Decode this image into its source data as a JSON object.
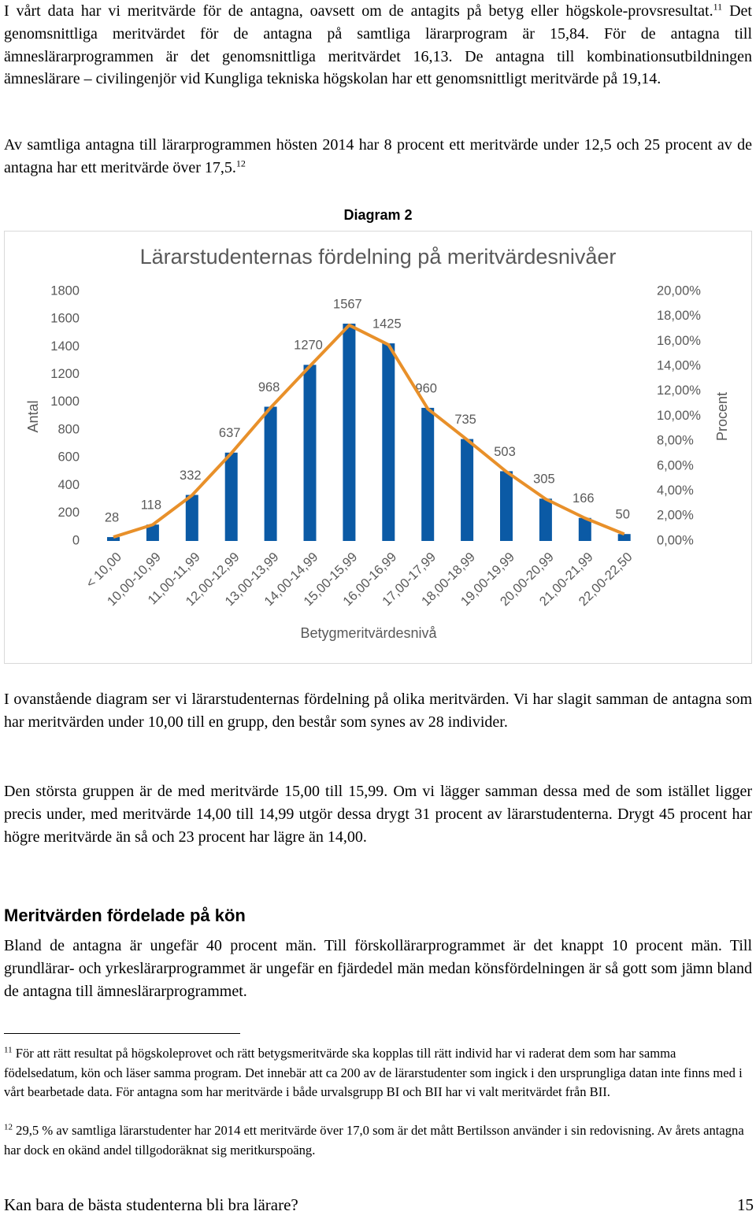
{
  "paragraphs": [
    {
      "before": "I vårt data har vi meritvärde för de antagna, oavsett om de antagits på betyg eller högskole-provsresultat.",
      "sup": "11",
      "after": " Det genomsnittliga meritvärdet för de antagna på samtliga lärarprogram är 15,84. För de antagna till ämneslärarprogrammen är det genomsnittliga meritvärdet 16,13. De antagna till kombinationsutbildningen ämneslärare – civilingenjör vid Kungliga tekniska högskolan har ett genomsnittligt meritvärde på 19,14."
    },
    {
      "before": "Av samtliga antagna till lärarprogrammen hösten 2014 har 8 procent ett meritvärde under 12,5 och 25 procent av de antagna har ett meritvärde över 17,5.",
      "sup": "12"
    },
    {
      "before": "I ovanstående diagram ser vi lärarstudenternas fördelning på olika meritvärden. Vi har slagit samman de antagna som har meritvärden under 10,00 till en grupp, den består som synes av 28 individer."
    },
    {
      "before": "Den största gruppen är de med meritvärde 15,00 till 15,99. Om vi lägger samman dessa med de som istället ligger precis under, med meritvärde 14,00 till 14,99 utgör dessa drygt 31 procent av lärarstudenterna. Drygt 45 procent har högre meritvärde än så och 23 procent har lägre än 14,00."
    },
    {
      "before": "Bland de antagna är ungefär 40 procent män. Till förskollärarprogrammet är det knappt 10 procent män. Till grundlärar- och yrkeslärarprogrammet är ungefär en fjärdedel män medan könsfördelningen är så gott som jämn bland de antagna till ämneslärarprogrammet."
    }
  ],
  "diagram_label": "Diagram 2",
  "heading": "Meritvärden fördelade på kön",
  "footnotes": [
    {
      "number": "11",
      "text": "För att rätt resultat på högskoleprovet och rätt betygsmeritvärde ska kopplas till rätt individ har vi raderat dem som har samma födelsedatum, kön och läser samma program. Det innebär att ca 200 av de lärarstudenter som ingick i den ursprungliga datan inte finns med i vårt bearbetade data. För antagna som har meritvärde i både urvalsgrupp BI och BII har vi valt meritvärdet från BII."
    },
    {
      "number": "12",
      "text": "29,5 % av samtliga lärarstudenter har 2014 ett meritvärde över 17,0 som är det mått Bertilsson använder i sin redovisning. Av årets antagna har dock en okänd andel tillgodoräknat sig meritkurspoäng."
    }
  ],
  "footer": {
    "title": "Kan bara de bästa studenterna bli bra lärare?",
    "page": "15"
  },
  "chart_data": {
    "type": "bar",
    "title": "Lärarstudenternas fördelning på meritvärdesnivåer",
    "x_label": "Betygmeritvärdesnivå",
    "y_label": "Antal",
    "y2_label": "Procent",
    "categories": [
      "< 10,00",
      "10,00-10,99",
      "11,00-11,99",
      "12,00-12,99",
      "13,00-13,99",
      "14,00-14,99",
      "15,00-15,99",
      "16,00-16,99",
      "17,00-17,99",
      "18,00-18,99",
      "19,00-19,99",
      "20,00-20,99",
      "21,00-21,99",
      "22,00-22,50"
    ],
    "series": [
      {
        "type": "bar",
        "color": "#0b5aa5",
        "values": [
          28,
          118,
          332,
          637,
          968,
          1270,
          1567,
          1425,
          960,
          735,
          503,
          305,
          166,
          50
        ]
      },
      {
        "type": "line",
        "axis": "y2",
        "color": "#e8902a",
        "values": [
          0.31,
          1.3,
          3.66,
          7.03,
          10.68,
          14.01,
          17.29,
          15.72,
          10.59,
          8.11,
          5.55,
          3.36,
          1.83,
          0.55
        ]
      }
    ],
    "ylim": [
      0,
      1800
    ],
    "yticks": [
      0,
      200,
      400,
      600,
      800,
      1000,
      1200,
      1400,
      1600,
      1800
    ],
    "y2lim": [
      0,
      20
    ],
    "y2ticks": [
      {
        "value": 0,
        "label": "0,00%"
      },
      {
        "value": 2,
        "label": "2,00%"
      },
      {
        "value": 4,
        "label": "4,00%"
      },
      {
        "value": 6,
        "label": "6,00%"
      },
      {
        "value": 8,
        "label": "8,00%"
      },
      {
        "value": 10,
        "label": "10,00%"
      },
      {
        "value": 12,
        "label": "12,00%"
      },
      {
        "value": 14,
        "label": "14,00%"
      },
      {
        "value": 16,
        "label": "16,00%"
      },
      {
        "value": 18,
        "label": "18,00%"
      },
      {
        "value": 20,
        "label": "20,00%"
      }
    ]
  }
}
